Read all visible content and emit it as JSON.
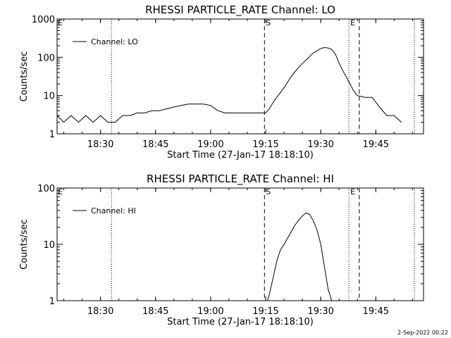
{
  "footer_timestamp": "2-Sep-2022 00:22",
  "chart_data": [
    {
      "type": "line",
      "title": "RHESSI PARTICLE_RATE Channel: LO",
      "xlabel": "Start Time (27-Jan-17 18:18:10)",
      "ylabel": "Counts/sec",
      "yscale": "log",
      "ylim": [
        1,
        1000
      ],
      "xlim": [
        "18:18:10",
        "19:58:00"
      ],
      "xticks": [
        "18:30",
        "18:45",
        "19:00",
        "19:15",
        "19:30",
        "19:45"
      ],
      "yticks": [
        "1",
        "10",
        "100",
        "1000"
      ],
      "legend": {
        "position": "top-left",
        "entries": [
          "Channel: LO"
        ]
      },
      "series": [
        {
          "name": "Channel: LO",
          "x": [
            "18:18:10",
            "18:20:00",
            "18:22:00",
            "18:24:00",
            "18:26:00",
            "18:28:00",
            "18:30:00",
            "18:32:00",
            "18:34:00",
            "18:36:00",
            "18:38:00",
            "18:40:00",
            "18:42:00",
            "18:44:00",
            "18:46:00",
            "18:48:00",
            "18:50:00",
            "18:52:00",
            "18:54:00",
            "18:56:00",
            "18:58:00",
            "19:00:00",
            "19:02:00",
            "19:04:00",
            "19:06:00",
            "19:08:00",
            "19:10:00",
            "19:12:00",
            "19:14:00",
            "19:15:00",
            "19:16:00",
            "19:17:00",
            "19:18:00",
            "19:20:00",
            "19:22:00",
            "19:24:00",
            "19:26:00",
            "19:28:00",
            "19:30:00",
            "19:31:00",
            "19:32:00",
            "19:33:00",
            "19:34:00",
            "19:35:00",
            "19:36:00",
            "19:37:00",
            "19:38:00",
            "19:39:00",
            "19:40:00",
            "19:42:00",
            "19:44:00",
            "19:46:00",
            "19:48:00",
            "19:50:00",
            "19:52:00"
          ],
          "values": [
            3,
            2,
            3,
            2,
            3,
            2,
            3,
            2,
            2,
            3,
            3,
            3.5,
            3.5,
            4,
            4,
            4.5,
            5,
            5.5,
            6,
            6,
            6,
            5.5,
            4,
            3.5,
            3.5,
            3.5,
            3.5,
            3.5,
            3.5,
            3.5,
            4.5,
            6.5,
            9,
            16,
            32,
            55,
            85,
            130,
            170,
            180,
            175,
            160,
            120,
            70,
            45,
            30,
            20,
            13,
            10,
            9,
            9,
            5,
            3,
            3,
            2
          ]
        }
      ],
      "vlines": [
        {
          "x": "18:33:00",
          "style": "dotted"
        },
        {
          "x": "19:14:40",
          "style": "dashed",
          "label": "S"
        },
        {
          "x": "19:37:40",
          "style": "dotted",
          "label": "E"
        },
        {
          "x": "19:40:30",
          "style": "dashed"
        },
        {
          "x": "19:55:30",
          "style": "dotted"
        }
      ],
      "corner_label": "E"
    },
    {
      "type": "line",
      "title": "RHESSI PARTICLE_RATE Channel: HI",
      "xlabel": "Start Time (27-Jan-17 18:18:10)",
      "ylabel": "Counts/sec",
      "yscale": "log",
      "ylim": [
        1,
        100
      ],
      "xlim": [
        "18:18:10",
        "19:58:00"
      ],
      "xticks": [
        "18:30",
        "18:45",
        "19:00",
        "19:15",
        "19:30",
        "19:45"
      ],
      "yticks": [
        "1",
        "10",
        "100"
      ],
      "legend": {
        "position": "top-left",
        "entries": [
          "Channel: HI"
        ]
      },
      "series": [
        {
          "name": "Channel: HI",
          "x": [
            "19:15:30",
            "19:16:00",
            "19:17:00",
            "19:18:00",
            "19:19:00",
            "19:20:00",
            "19:21:00",
            "19:22:00",
            "19:23:00",
            "19:24:00",
            "19:25:00",
            "19:26:00",
            "19:27:00",
            "19:28:00",
            "19:29:00",
            "19:30:00",
            "19:31:00",
            "19:32:00",
            "19:33:00"
          ],
          "values": [
            1,
            1.3,
            2.5,
            5,
            8,
            10,
            13,
            17,
            22,
            27,
            32,
            36,
            34,
            26,
            18,
            10,
            4,
            1.6,
            1
          ]
        }
      ],
      "vlines": [
        {
          "x": "18:33:00",
          "style": "dotted"
        },
        {
          "x": "19:14:40",
          "style": "dashed",
          "label": "S"
        },
        {
          "x": "19:37:40",
          "style": "dotted",
          "label": "E"
        },
        {
          "x": "19:40:30",
          "style": "dashed"
        },
        {
          "x": "19:55:30",
          "style": "dotted"
        }
      ],
      "corner_label": "E"
    }
  ]
}
